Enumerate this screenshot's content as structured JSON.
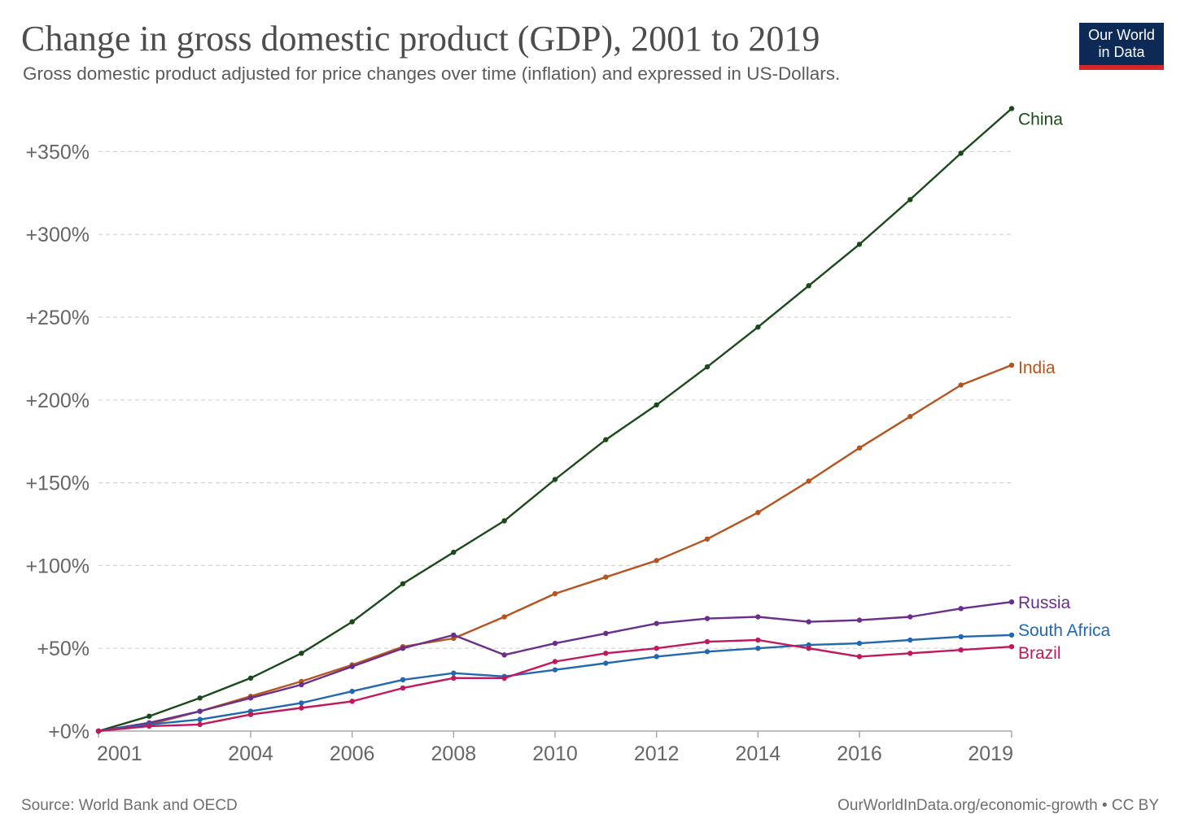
{
  "header": {
    "title": "Change in gross domestic product (GDP), 2001 to 2019",
    "subtitle": "Gross domestic product adjusted for price changes over time (inflation) and expressed in US-Dollars.",
    "logo_line1": "Our World",
    "logo_line2": "in Data"
  },
  "footer": {
    "source": "Source: World Bank and OECD",
    "credit": "OurWorldInData.org/economic-growth • CC BY"
  },
  "chart_data": {
    "type": "line",
    "title": "Change in gross domestic product (GDP), 2001 to 2019",
    "subtitle": "Gross domestic product adjusted for price changes over time (inflation) and expressed in US-Dollars.",
    "x": [
      2001,
      2002,
      2003,
      2004,
      2005,
      2006,
      2007,
      2008,
      2009,
      2010,
      2011,
      2012,
      2013,
      2014,
      2015,
      2016,
      2017,
      2018,
      2019
    ],
    "x_ticks": [
      2001,
      2004,
      2006,
      2008,
      2010,
      2012,
      2014,
      2016,
      2019
    ],
    "y_ticks": [
      0,
      50,
      100,
      150,
      200,
      250,
      300,
      350
    ],
    "y_tick_labels": [
      "+0%",
      "+50%",
      "+100%",
      "+150%",
      "+200%",
      "+250%",
      "+300%",
      "+350%"
    ],
    "ylim": [
      0,
      376
    ],
    "grid": "horizontal dashed",
    "legend": "inline labels at right end of lines",
    "series": [
      {
        "name": "China",
        "color": "#1a4a1a",
        "values": [
          0,
          9,
          20,
          32,
          47,
          66,
          89,
          108,
          127,
          152,
          176,
          197,
          220,
          244,
          269,
          294,
          321,
          349,
          376
        ]
      },
      {
        "name": "India",
        "color": "#b5541e",
        "values": [
          0,
          4,
          12,
          21,
          30,
          40,
          51,
          56,
          69,
          83,
          93,
          103,
          116,
          132,
          151,
          171,
          190,
          209,
          221
        ]
      },
      {
        "name": "Russia",
        "color": "#6a2f8c",
        "values": [
          0,
          5,
          12,
          20,
          28,
          39,
          50,
          58,
          46,
          53,
          59,
          65,
          68,
          69,
          66,
          67,
          69,
          74,
          78
        ]
      },
      {
        "name": "South Africa",
        "color": "#2268b0",
        "values": [
          0,
          4,
          7,
          12,
          17,
          24,
          31,
          35,
          33,
          37,
          41,
          45,
          48,
          50,
          52,
          53,
          55,
          57,
          58
        ]
      },
      {
        "name": "Brazil",
        "color": "#c2185b",
        "values": [
          0,
          3,
          4,
          10,
          14,
          18,
          26,
          32,
          32,
          42,
          47,
          50,
          54,
          55,
          50,
          45,
          47,
          49,
          51
        ]
      }
    ]
  }
}
